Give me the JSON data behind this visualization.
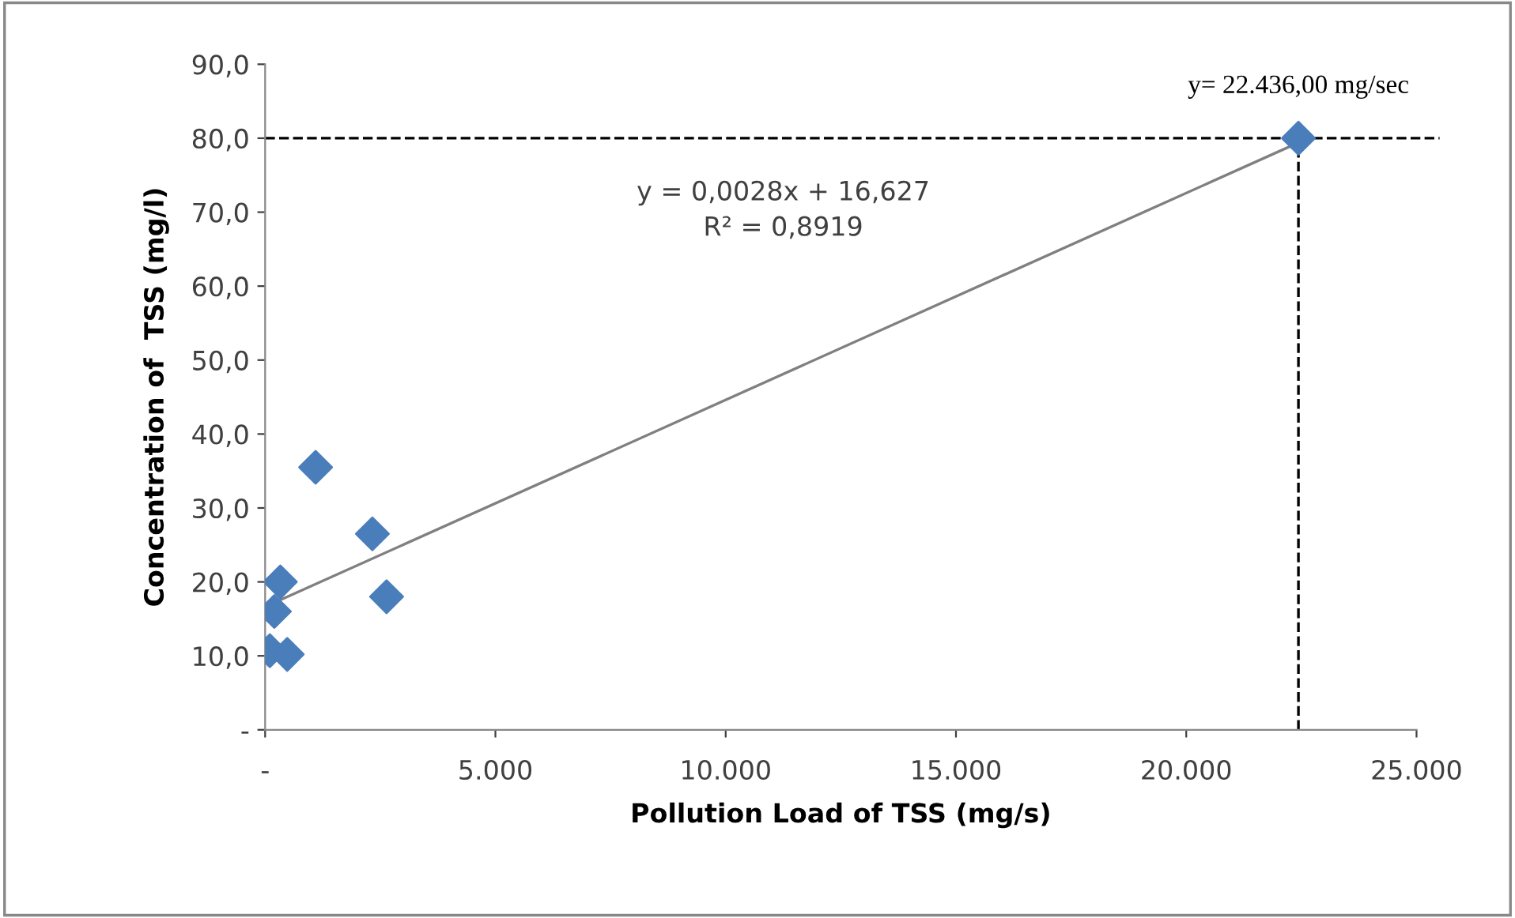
{
  "chart_data": {
    "type": "scatter",
    "xlabel": "Pollution Load of TSS (mg/s)",
    "ylabel": "Concentration of  TSS (mg/l)",
    "xlim": [
      0,
      25000
    ],
    "ylim": [
      0,
      90
    ],
    "xticks": [
      {
        "value": 0,
        "label": "-"
      },
      {
        "value": 5000,
        "label": "5.000"
      },
      {
        "value": 10000,
        "label": "10.000"
      },
      {
        "value": 15000,
        "label": "15.000"
      },
      {
        "value": 20000,
        "label": "20.000"
      },
      {
        "value": 25000,
        "label": "25.000"
      }
    ],
    "yticks": [
      {
        "value": 0,
        "label": "-"
      },
      {
        "value": 10,
        "label": "10,0"
      },
      {
        "value": 20,
        "label": "20,0"
      },
      {
        "value": 30,
        "label": "30,0"
      },
      {
        "value": 40,
        "label": "40,0"
      },
      {
        "value": 50,
        "label": "50,0"
      },
      {
        "value": 60,
        "label": "60,0"
      },
      {
        "value": 70,
        "label": "70,0"
      },
      {
        "value": 80,
        "label": "80,0"
      },
      {
        "value": 90,
        "label": "90,0"
      }
    ],
    "grid": false,
    "legend": false,
    "series": [
      {
        "color": "#4a7ebb",
        "marker": "diamond",
        "x": [
          1096,
          2329,
          2637,
          330,
          200,
          103,
          480,
          22436
        ],
        "values": [
          35.5,
          26.5,
          18,
          20,
          16,
          10.7,
          10.2,
          80
        ]
      },
      {
        "type": "line",
        "color": "#808080",
        "marker": "none",
        "x": [
          200,
          22436
        ],
        "values": [
          17.2,
          79.4
        ]
      }
    ],
    "ref_lines": [
      {
        "axis": "y",
        "value": 80,
        "color": "#000000",
        "line_style": "dashed"
      },
      {
        "axis": "x",
        "value": 22436,
        "color": "#000000",
        "line_style": "dashed"
      }
    ],
    "annotations": [
      "y = 0,0028x + 16,627\nR² = 0,8919",
      {
        "text": "y= 22.436,00 mg/sec",
        "x": 22436,
        "y": 80
      }
    ]
  }
}
